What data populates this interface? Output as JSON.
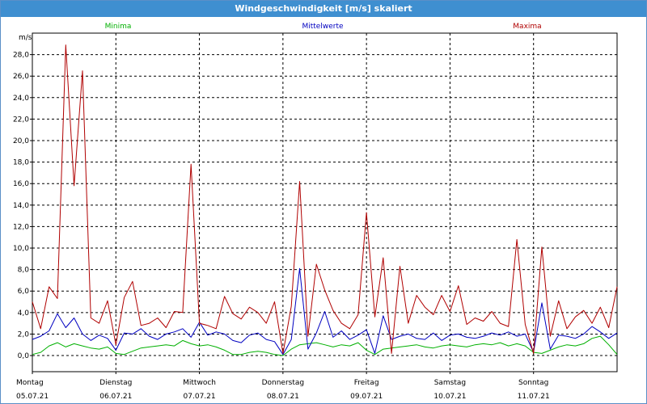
{
  "window": {
    "title": "Windgeschwindigkeit [m/s] skaliert"
  },
  "chart_data": {
    "type": "line",
    "title": "Windgeschwindigkeit [m/s] skaliert",
    "ylabel": "m/s",
    "xlabel": "",
    "ylim": [
      -1.5,
      30.0
    ],
    "yticks": [
      "0,0",
      "2,0",
      "4,0",
      "6,0",
      "8,0",
      "10,0",
      "12,0",
      "14,0",
      "16,0",
      "18,0",
      "20,0",
      "22,0",
      "24,0",
      "26,0",
      "28,0"
    ],
    "xlim": [
      0,
      7
    ],
    "x_ticks": [
      {
        "day": "Montag",
        "date": "05.07.21"
      },
      {
        "day": "Dienstag",
        "date": "06.07.21"
      },
      {
        "day": "Mittwoch",
        "date": "07.07.21"
      },
      {
        "day": "Donnerstag",
        "date": "08.07.21"
      },
      {
        "day": "Freitag",
        "date": "09.07.21"
      },
      {
        "day": "Samstag",
        "date": "10.07.21"
      },
      {
        "day": "Sonntag",
        "date": "11.07.21"
      }
    ],
    "grid": true,
    "legend_position": "top",
    "series": [
      {
        "name": "Minima",
        "color": "#00b000",
        "x": [
          0,
          0.1,
          0.2,
          0.3,
          0.4,
          0.5,
          0.6,
          0.7,
          0.8,
          0.9,
          1.0,
          1.1,
          1.2,
          1.3,
          1.4,
          1.5,
          1.6,
          1.7,
          1.8,
          1.9,
          2.0,
          2.1,
          2.2,
          2.3,
          2.4,
          2.5,
          2.6,
          2.7,
          2.8,
          2.9,
          3.0,
          3.1,
          3.2,
          3.3,
          3.4,
          3.5,
          3.6,
          3.7,
          3.8,
          3.9,
          4.0,
          4.1,
          4.2,
          4.3,
          4.4,
          4.5,
          4.6,
          4.7,
          4.8,
          4.9,
          5.0,
          5.1,
          5.2,
          5.3,
          5.4,
          5.5,
          5.6,
          5.7,
          5.8,
          5.9,
          6.0,
          6.1,
          6.2,
          6.3,
          6.4,
          6.5,
          6.6,
          6.7,
          6.8,
          6.9,
          7.0
        ],
        "values": [
          0.1,
          0.3,
          0.9,
          1.2,
          0.8,
          1.1,
          0.9,
          0.7,
          0.6,
          0.8,
          0.2,
          0.1,
          0.4,
          0.7,
          0.8,
          0.9,
          1.0,
          0.9,
          1.4,
          1.1,
          0.9,
          1.0,
          0.8,
          0.5,
          0.1,
          0.1,
          0.3,
          0.4,
          0.3,
          0.1,
          0.0,
          0.6,
          1.0,
          1.1,
          1.2,
          1.0,
          0.8,
          1.0,
          0.9,
          1.2,
          0.5,
          0.1,
          0.6,
          0.7,
          0.8,
          0.9,
          1.0,
          0.8,
          0.7,
          0.9,
          1.0,
          0.9,
          0.8,
          1.0,
          1.1,
          1.0,
          1.2,
          0.9,
          1.1,
          0.9,
          0.3,
          0.2,
          0.5,
          0.8,
          1.0,
          0.9,
          1.1,
          1.6,
          1.8,
          1.0,
          0.1
        ]
      },
      {
        "name": "Mittelwerte",
        "color": "#0000c0",
        "x": [
          0,
          0.1,
          0.2,
          0.3,
          0.4,
          0.5,
          0.6,
          0.7,
          0.8,
          0.9,
          1.0,
          1.1,
          1.2,
          1.3,
          1.4,
          1.5,
          1.6,
          1.7,
          1.8,
          1.9,
          2.0,
          2.1,
          2.2,
          2.3,
          2.4,
          2.5,
          2.6,
          2.7,
          2.8,
          2.9,
          3.0,
          3.1,
          3.2,
          3.3,
          3.4,
          3.5,
          3.6,
          3.7,
          3.8,
          3.9,
          4.0,
          4.1,
          4.2,
          4.3,
          4.4,
          4.5,
          4.6,
          4.7,
          4.8,
          4.9,
          5.0,
          5.1,
          5.2,
          5.3,
          5.4,
          5.5,
          5.6,
          5.7,
          5.8,
          5.9,
          6.0,
          6.1,
          6.2,
          6.3,
          6.4,
          6.5,
          6.6,
          6.7,
          6.8,
          6.9,
          7.0
        ],
        "values": [
          1.5,
          1.8,
          2.3,
          3.9,
          2.6,
          3.5,
          2.0,
          1.4,
          1.9,
          1.6,
          0.5,
          2.1,
          2.0,
          2.5,
          1.8,
          1.5,
          2.0,
          2.2,
          2.5,
          1.7,
          3.1,
          1.9,
          2.2,
          2.0,
          1.4,
          1.2,
          1.9,
          2.1,
          1.5,
          1.3,
          0.1,
          1.5,
          8.1,
          0.6,
          2.1,
          4.1,
          1.7,
          2.3,
          1.5,
          1.9,
          2.4,
          0.2,
          3.7,
          1.5,
          1.8,
          2.0,
          1.6,
          1.5,
          2.1,
          1.4,
          1.9,
          2.0,
          1.7,
          1.6,
          1.8,
          2.1,
          1.9,
          2.2,
          1.8,
          2.0,
          0.3,
          4.9,
          0.6,
          1.9,
          1.8,
          1.6,
          2.0,
          2.7,
          2.2,
          1.6,
          2.1
        ]
      },
      {
        "name": "Maxima",
        "color": "#b00000",
        "x": [
          0,
          0.1,
          0.2,
          0.3,
          0.4,
          0.5,
          0.6,
          0.7,
          0.8,
          0.9,
          1.0,
          1.1,
          1.2,
          1.3,
          1.4,
          1.5,
          1.6,
          1.7,
          1.8,
          1.9,
          2.0,
          2.1,
          2.2,
          2.3,
          2.4,
          2.5,
          2.6,
          2.7,
          2.8,
          2.9,
          3.0,
          3.1,
          3.2,
          3.3,
          3.4,
          3.5,
          3.6,
          3.7,
          3.8,
          3.9,
          4.0,
          4.1,
          4.2,
          4.3,
          4.4,
          4.5,
          4.6,
          4.7,
          4.8,
          4.9,
          5.0,
          5.1,
          5.2,
          5.3,
          5.4,
          5.5,
          5.6,
          5.7,
          5.8,
          5.9,
          6.0,
          6.1,
          6.2,
          6.3,
          6.4,
          6.5,
          6.6,
          6.7,
          6.8,
          6.9,
          7.0
        ],
        "values": [
          5.0,
          2.5,
          6.4,
          5.3,
          28.9,
          15.8,
          26.5,
          3.5,
          3.0,
          5.1,
          1.0,
          5.4,
          6.9,
          2.8,
          3.0,
          3.5,
          2.6,
          4.1,
          4.0,
          17.8,
          3.0,
          2.8,
          2.5,
          5.5,
          3.9,
          3.4,
          4.5,
          4.0,
          3.0,
          5.0,
          0.2,
          4.6,
          16.2,
          1.8,
          8.5,
          6.1,
          4.2,
          3.0,
          2.5,
          3.8,
          13.3,
          3.6,
          9.1,
          0.2,
          8.3,
          3.0,
          5.6,
          4.5,
          3.8,
          5.6,
          4.1,
          6.5,
          2.9,
          3.5,
          3.2,
          4.1,
          3.0,
          2.7,
          10.8,
          2.9,
          0.2,
          10.1,
          1.8,
          5.1,
          2.5,
          3.6,
          4.2,
          3.0,
          4.5,
          2.6,
          6.4
        ]
      }
    ]
  }
}
